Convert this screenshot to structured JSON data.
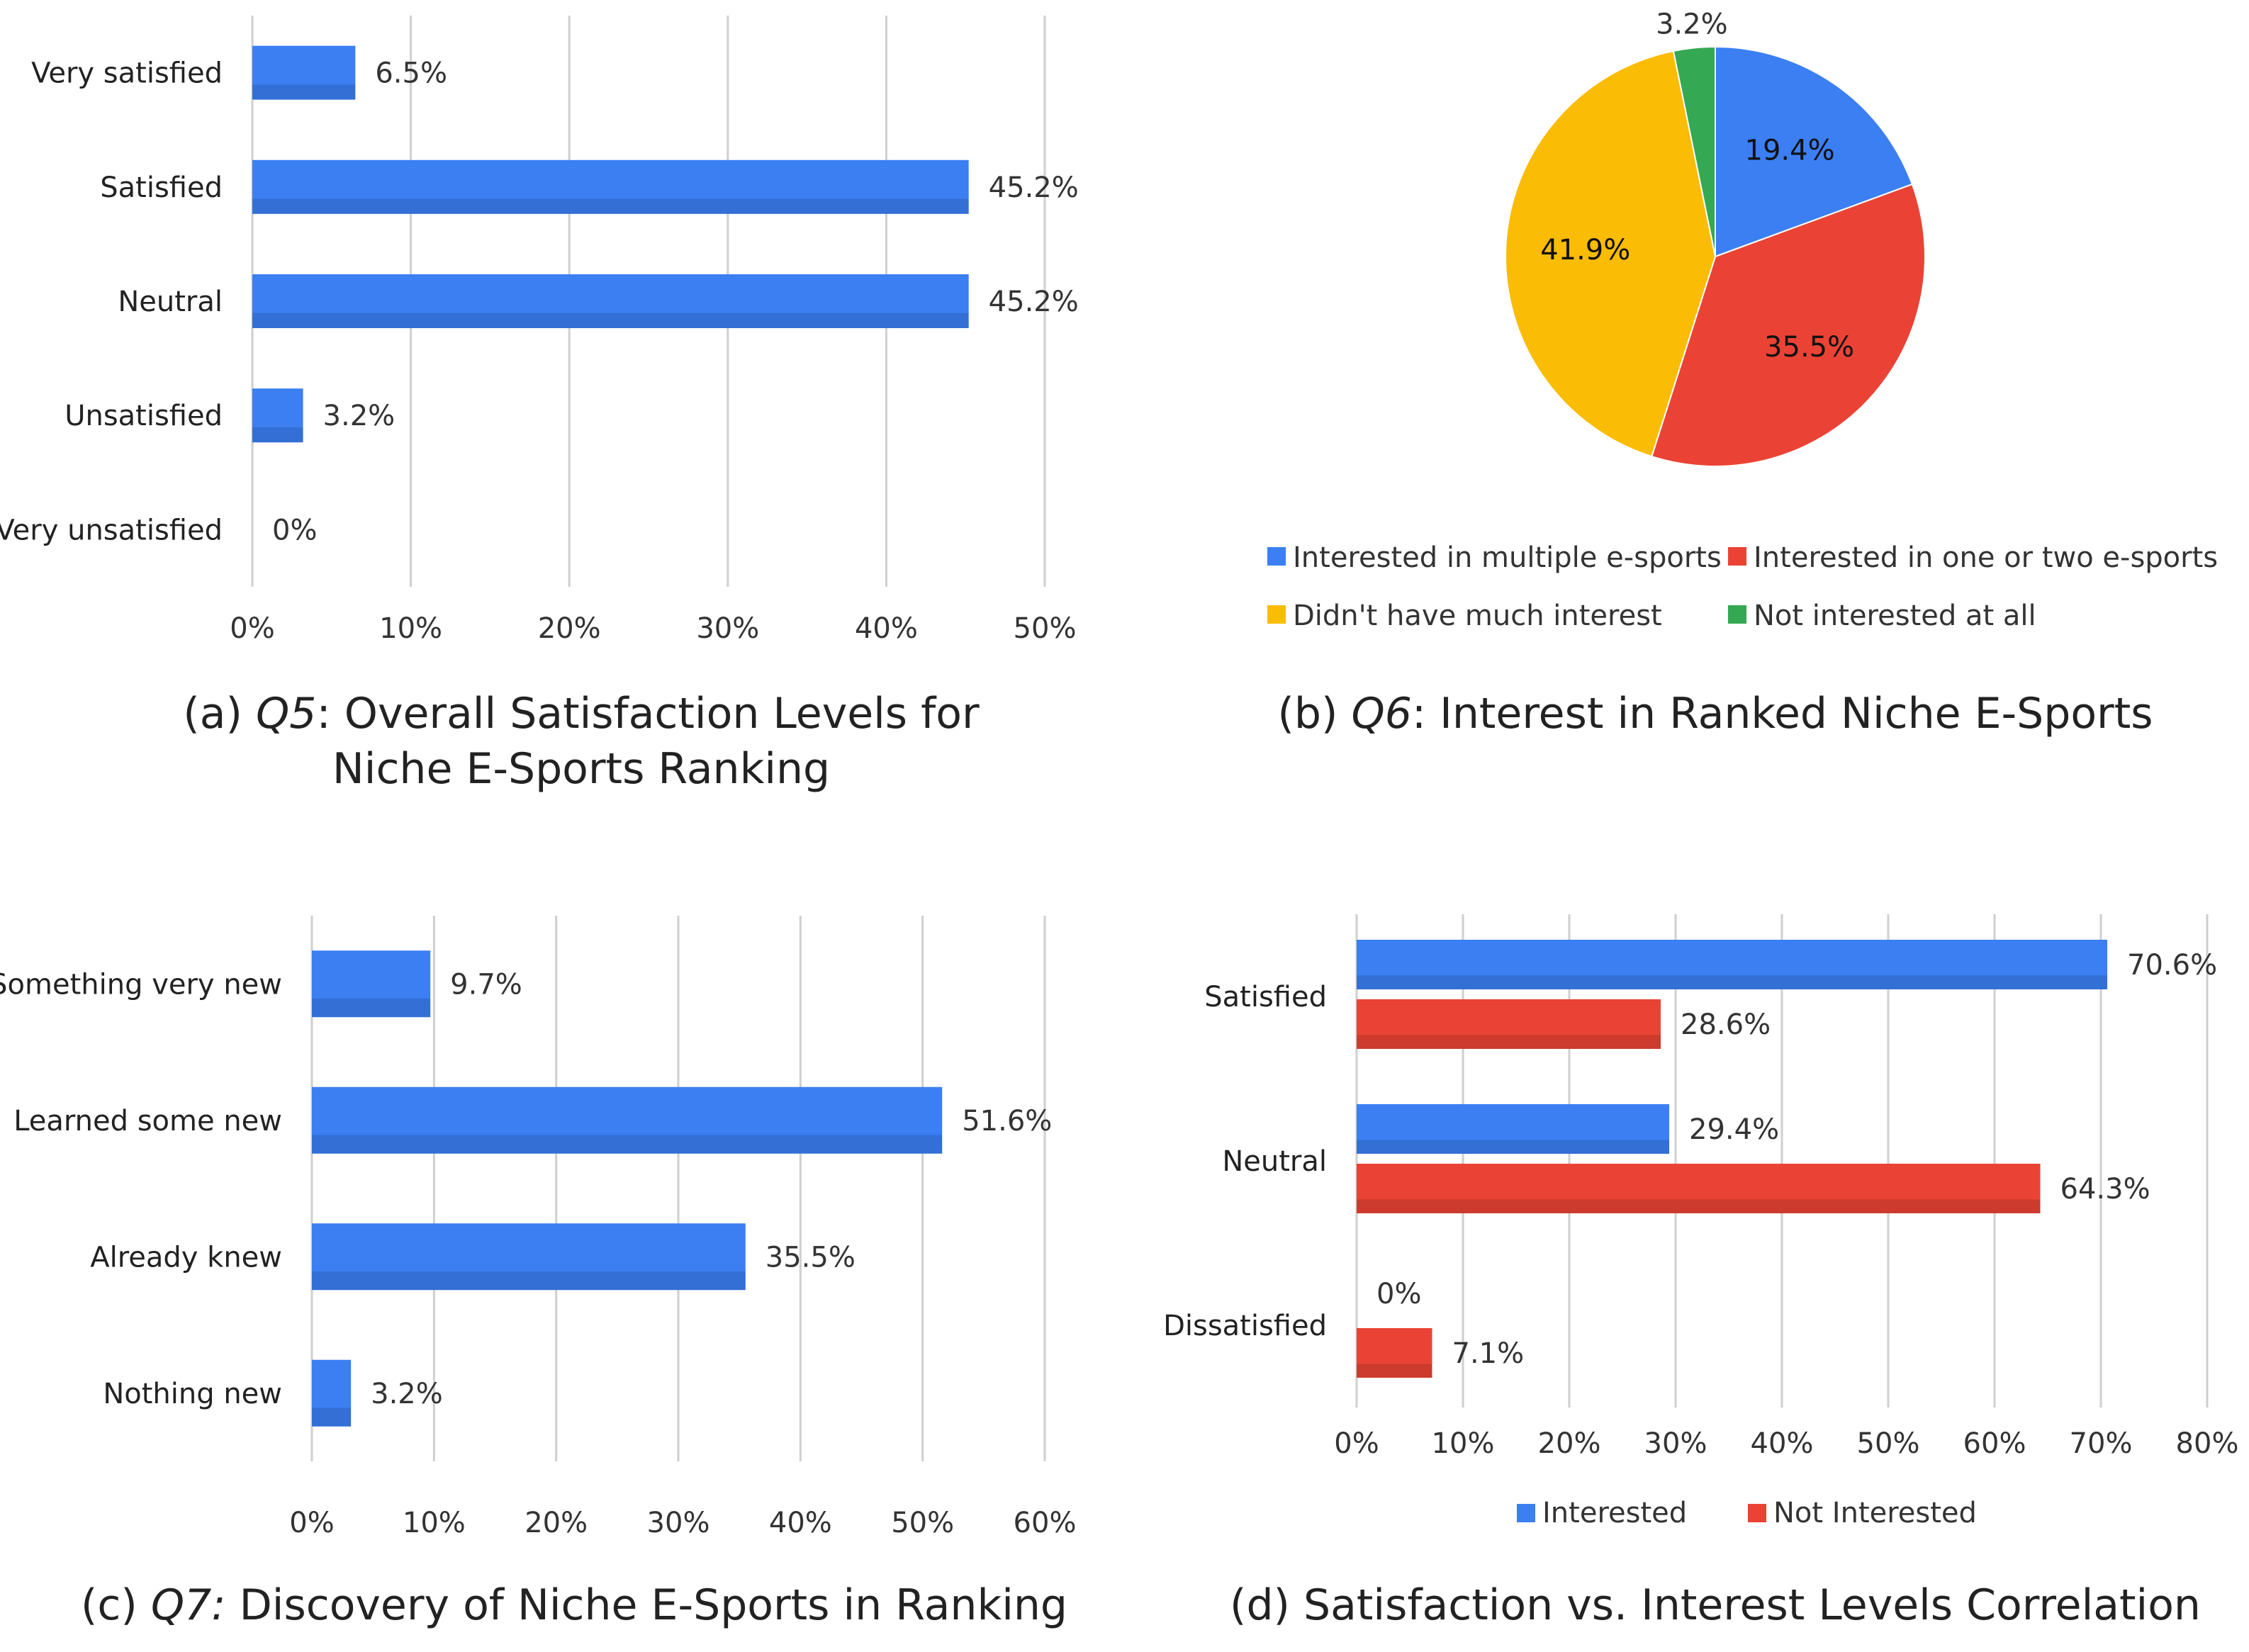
{
  "chart_data": [
    {
      "type": "bar",
      "orientation": "horizontal",
      "caption": {
        "prefix": "(a) ",
        "q": "Q5",
        "rest_line1": ": Overall Satisfaction Levels for",
        "line2": "Niche E-Sports Ranking"
      },
      "categories": [
        "Very satisfied",
        "Satisfied",
        "Neutral",
        "Unsatisfied",
        "Very unsatisfied"
      ],
      "values": [
        6.5,
        45.2,
        45.2,
        3.2,
        0
      ],
      "value_labels": [
        "6.5%",
        "45.2%",
        "45.2%",
        "3.2%",
        "0%"
      ],
      "xlim": [
        0,
        50
      ],
      "ticks": [
        0,
        10,
        20,
        30,
        40,
        50
      ],
      "tick_labels": [
        "0%",
        "10%",
        "20%",
        "30%",
        "40%",
        "50%"
      ],
      "color": "#3b7ff2",
      "grid": true
    },
    {
      "type": "pie",
      "caption": {
        "prefix": "(b) ",
        "q": "Q6",
        "rest_line1": ": Interest in Ranked Niche E-Sports"
      },
      "slices": [
        {
          "label": "Interested in multiple e-sports",
          "value": 19.4,
          "value_label": "19.4%",
          "color": "#3b7ff2"
        },
        {
          "label": "Interested in one or two e-sports",
          "value": 35.5,
          "value_label": "35.5%",
          "color": "#ea4335"
        },
        {
          "label": "Didn't have much interest",
          "value": 41.9,
          "value_label": "41.9%",
          "color": "#fbbc05"
        },
        {
          "label": "Not interested at all",
          "value": 3.2,
          "value_label": "3.2%",
          "color": "#34a853"
        }
      ],
      "legend": "bottom"
    },
    {
      "type": "bar",
      "orientation": "horizontal",
      "caption": {
        "prefix": "(c) ",
        "q": "Q7:",
        "rest_line1": " Discovery of Niche E-Sports in Ranking"
      },
      "categories": [
        "Something very new",
        "Learned some new",
        "Already knew",
        "Nothing new"
      ],
      "values": [
        9.7,
        51.6,
        35.5,
        3.2
      ],
      "value_labels": [
        "9.7%",
        "51.6%",
        "35.5%",
        "3.2%"
      ],
      "xlim": [
        0,
        60
      ],
      "ticks": [
        0,
        10,
        20,
        30,
        40,
        50,
        60
      ],
      "tick_labels": [
        "0%",
        "10%",
        "20%",
        "30%",
        "40%",
        "50%",
        "60%"
      ],
      "color": "#3b7ff2",
      "grid": true
    },
    {
      "type": "bar",
      "orientation": "horizontal",
      "caption": {
        "prefix": "(d) ",
        "q": "",
        "rest_line1": "Satisfaction vs. Interest Levels Correlation"
      },
      "categories": [
        "Satisfied",
        "Neutral",
        "Dissatisfied"
      ],
      "series": [
        {
          "name": "Interested",
          "values": [
            70.6,
            29.4,
            0
          ],
          "value_labels": [
            "70.6%",
            "29.4%",
            "0%"
          ],
          "color": "#3b7ff2"
        },
        {
          "name": "Not Interested",
          "values": [
            28.6,
            64.3,
            7.1
          ],
          "value_labels": [
            "28.6%",
            "64.3%",
            "7.1%"
          ],
          "color": "#ea4335"
        }
      ],
      "xlim": [
        0,
        80
      ],
      "ticks": [
        0,
        10,
        20,
        30,
        40,
        50,
        60,
        70,
        80
      ],
      "tick_labels": [
        "0%",
        "10%",
        "20%",
        "30%",
        "40%",
        "50%",
        "60%",
        "70%",
        "80%"
      ],
      "legend": "bottom",
      "grid": true
    }
  ]
}
